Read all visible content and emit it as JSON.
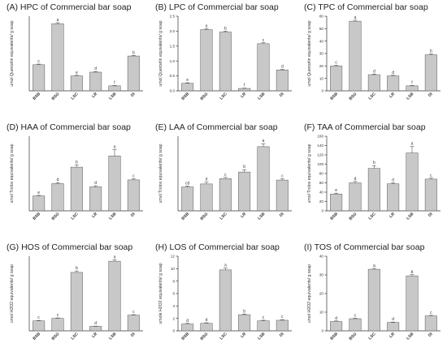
{
  "chart_data": [
    {
      "type": "bar",
      "title": "(A) HPC of Commercial bar soap",
      "ylabel": "umol Quercetin equivalents/ g soap",
      "categories": [
        "BSB",
        "BSG",
        "LSC",
        "LR",
        "LSB",
        "DI"
      ],
      "values": [
        21,
        54,
        12,
        15,
        4,
        28
      ],
      "errors": [
        0.5,
        0.8,
        0.5,
        0.5,
        0.3,
        0.5
      ],
      "letters": [
        "c",
        "a",
        "e",
        "d",
        "f",
        "b"
      ],
      "ylim": [
        0,
        60
      ],
      "yticks": [],
      "show_ticks": false
    },
    {
      "type": "bar",
      "title": "(B) LPC of Commercial bar soap",
      "ylabel": "umol Quercetin equivalents/ g soap",
      "categories": [
        "BSB",
        "BSG",
        "LSC",
        "LR",
        "LSB",
        "DI"
      ],
      "values": [
        0.25,
        2.05,
        1.97,
        0.08,
        1.58,
        0.7
      ],
      "errors": [
        0.02,
        0.03,
        0.03,
        0.01,
        0.03,
        0.02
      ],
      "letters": [
        "e",
        "a",
        "b",
        "f",
        "c",
        "d"
      ],
      "ylim": [
        0,
        2.5
      ],
      "yticks": [
        0.0,
        0.5,
        1.0,
        1.5,
        2.0,
        2.5
      ],
      "tick_decimals": 1,
      "show_ticks": true
    },
    {
      "type": "bar",
      "title": "(C) TPC of Commercial bar soap",
      "ylabel": "umol Quercetin equivalents/ g soap",
      "categories": [
        "BSB",
        "BSG",
        "LSC",
        "LR",
        "LSB",
        "DI"
      ],
      "values": [
        20,
        56,
        13,
        12,
        4,
        29
      ],
      "errors": [
        0.5,
        0.8,
        0.5,
        0.5,
        0.3,
        0.6
      ],
      "letters": [
        "c",
        "a",
        "d",
        "d",
        "f",
        "b"
      ],
      "ylim": [
        0,
        60
      ],
      "yticks": [
        0,
        10,
        20,
        30,
        40,
        50,
        60
      ],
      "tick_decimals": 0,
      "show_ticks": true
    },
    {
      "type": "bar",
      "title": "(D) HAA of Commercial bar soap",
      "ylabel": "umol Trolox equivalents/ g soap",
      "categories": [
        "BSB",
        "BSG",
        "LSC",
        "LR",
        "LSB",
        "DI"
      ],
      "values": [
        28,
        51,
        82,
        45,
        103,
        58
      ],
      "errors": [
        1,
        2,
        4,
        2,
        12,
        2
      ],
      "letters": [
        "e",
        "d",
        "b",
        "d",
        "a",
        "c"
      ],
      "ylim": [
        0,
        140
      ],
      "yticks": [],
      "show_ticks": false
    },
    {
      "type": "bar",
      "title": "(E) LAA of Commercial bar soap",
      "ylabel": "umol Trolox equivalents/ g soap",
      "categories": [
        "BSB",
        "BSG",
        "LSC",
        "LR",
        "LSB",
        "DI"
      ],
      "values": [
        8,
        9,
        10.8,
        13,
        21.5,
        10.3
      ],
      "errors": [
        0.3,
        0.6,
        0.4,
        0.8,
        1.0,
        0.4
      ],
      "letters": [
        "cd",
        "d",
        "c",
        "b",
        "a",
        "c"
      ],
      "ylim": [
        0,
        25
      ],
      "yticks": [],
      "show_ticks": false
    },
    {
      "type": "bar",
      "title": "(F) TAA of Commercial bar soap",
      "ylabel": "umol Trolox equivalents/ g soap",
      "categories": [
        "BSB",
        "BSG",
        "LSC",
        "LR",
        "LSB",
        "DI"
      ],
      "values": [
        36,
        60,
        91,
        58,
        124,
        68
      ],
      "errors": [
        2,
        3,
        6,
        2,
        14,
        2
      ],
      "letters": [
        "e",
        "d",
        "b",
        "d",
        "a",
        "c"
      ],
      "ylim": [
        0,
        160
      ],
      "yticks": [
        0,
        20,
        40,
        60,
        80,
        100,
        120,
        140,
        160
      ],
      "tick_decimals": 0,
      "show_ticks": true
    },
    {
      "type": "bar",
      "title": "(G) HOS of Commercial bar soap",
      "ylabel": "umol H2O2 equivalents/ g soap",
      "categories": [
        "BSB",
        "BSG",
        "LSC",
        "LR",
        "LSB",
        "DI"
      ],
      "values": [
        4,
        5,
        23.5,
        1.8,
        28,
        6.3
      ],
      "errors": [
        0.2,
        0.2,
        0.6,
        0.1,
        0.5,
        0.2
      ],
      "letters": [
        "c",
        "c",
        "b",
        "d",
        "a",
        "c"
      ],
      "ylim": [
        0,
        30
      ],
      "yticks": [],
      "show_ticks": false
    },
    {
      "type": "bar",
      "title": "(H) LOS of Commercial bar soap",
      "ylabel": "umole H2O2 equivalents/ g soap",
      "categories": [
        "BSB",
        "BSG",
        "LSC",
        "LR",
        "LSB",
        "DI"
      ],
      "values": [
        1.1,
        1.2,
        9.8,
        2.6,
        1.6,
        1.7
      ],
      "errors": [
        0.1,
        0.1,
        0.3,
        0.1,
        0.1,
        0.1
      ],
      "letters": [
        "d",
        "d",
        "a",
        "b",
        "c",
        "c"
      ],
      "ylim": [
        0,
        12
      ],
      "yticks": [
        0,
        2,
        4,
        6,
        8,
        10,
        12
      ],
      "tick_decimals": 0,
      "show_ticks": true
    },
    {
      "type": "bar",
      "title": "(I) TOS of Commercial bar soap",
      "ylabel": "umol H2O2 equivalents/ g soap",
      "categories": [
        "BSB",
        "BSG",
        "LSC",
        "LR",
        "LSB",
        "DI"
      ],
      "values": [
        5,
        6.5,
        33,
        4.5,
        29.5,
        8
      ],
      "errors": [
        0.3,
        0.3,
        0.5,
        0.2,
        0.6,
        0.3
      ],
      "letters": [
        "d",
        "c",
        "a",
        "d",
        "b",
        "c"
      ],
      "ylim": [
        0,
        40
      ],
      "yticks": [
        0,
        10,
        20,
        30,
        40
      ],
      "tick_decimals": 0,
      "show_ticks": true
    }
  ]
}
